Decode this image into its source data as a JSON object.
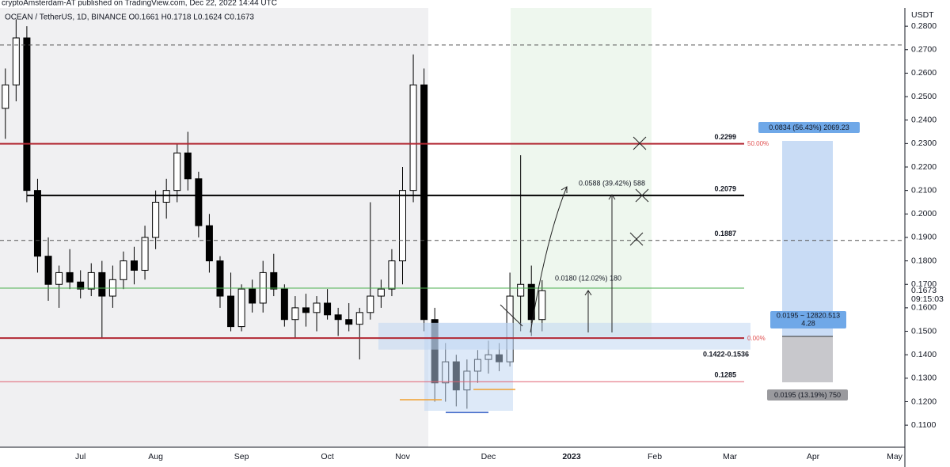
{
  "chart_data": {
    "type": "candlestick",
    "header": "cryptoAmsterdam-AT published on TradingView.com, Dec 22, 2022 14:44 UTC",
    "symbol": "OCEAN / TetherUS, 1D, BINANCE O0.1661 H0.1718 L0.1624 C0.1673",
    "currency": "USDT",
    "countdown": "09:15:03",
    "categories": [
      null,
      null,
      null,
      null,
      null,
      null,
      null,
      "Jul",
      null,
      null,
      null,
      null,
      null,
      null,
      "Aug",
      null,
      null,
      null,
      null,
      null,
      null,
      null,
      "Sep",
      null,
      null,
      null,
      null,
      null,
      null,
      null,
      "Oct",
      null,
      null,
      null,
      null,
      null,
      null,
      "Nov",
      null,
      null,
      null,
      null,
      null,
      null,
      null,
      "Dec",
      null,
      null,
      null,
      null,
      null
    ],
    "future_months": [
      "2023",
      "Feb",
      "Mar",
      "Apr",
      "May"
    ],
    "open": [
      0.245,
      0.255,
      0.275,
      0.21,
      0.182,
      0.17,
      0.175,
      0.171,
      0.168,
      0.175,
      0.165,
      0.172,
      0.18,
      0.176,
      0.19,
      0.205,
      0.21,
      0.226,
      0.215,
      0.195,
      0.18,
      0.165,
      0.152,
      0.168,
      0.162,
      0.175,
      0.168,
      0.155,
      0.16,
      0.158,
      0.162,
      0.157,
      0.155,
      0.153,
      0.158,
      0.165,
      0.168,
      0.18,
      0.21,
      0.255,
      0.155,
      0.128,
      0.137,
      0.125,
      0.133,
      0.138,
      0.14,
      0.137,
      0.165,
      0.17,
      0.155
    ],
    "high": [
      0.262,
      0.283,
      0.28,
      0.215,
      0.19,
      0.178,
      0.185,
      0.176,
      0.179,
      0.18,
      0.178,
      0.184,
      0.186,
      0.195,
      0.21,
      0.215,
      0.23,
      0.235,
      0.218,
      0.2,
      0.182,
      0.175,
      0.17,
      0.172,
      0.18,
      0.183,
      0.17,
      0.165,
      0.166,
      0.165,
      0.168,
      0.16,
      0.162,
      0.16,
      0.205,
      0.172,
      0.185,
      0.22,
      0.268,
      0.262,
      0.16,
      0.145,
      0.14,
      0.138,
      0.142,
      0.146,
      0.145,
      0.175,
      0.225,
      0.178,
      0.1718
    ],
    "low": [
      0.232,
      0.248,
      0.205,
      0.175,
      0.163,
      0.16,
      0.168,
      0.164,
      0.165,
      0.147,
      0.16,
      0.168,
      0.17,
      0.172,
      0.185,
      0.198,
      0.205,
      0.21,
      0.19,
      0.175,
      0.16,
      0.15,
      0.15,
      0.158,
      0.158,
      0.165,
      0.152,
      0.147,
      0.152,
      0.15,
      0.155,
      0.148,
      0.15,
      0.138,
      0.155,
      0.16,
      0.165,
      0.17,
      0.205,
      0.15,
      0.12,
      0.12,
      0.118,
      0.117,
      0.128,
      0.132,
      0.133,
      0.135,
      0.15,
      0.148,
      0.15
    ],
    "close": [
      0.255,
      0.275,
      0.21,
      0.182,
      0.17,
      0.175,
      0.171,
      0.168,
      0.175,
      0.165,
      0.172,
      0.18,
      0.176,
      0.19,
      0.205,
      0.21,
      0.226,
      0.215,
      0.195,
      0.18,
      0.165,
      0.152,
      0.168,
      0.162,
      0.175,
      0.168,
      0.155,
      0.16,
      0.158,
      0.162,
      0.157,
      0.155,
      0.153,
      0.158,
      0.165,
      0.168,
      0.18,
      0.21,
      0.255,
      0.155,
      0.128,
      0.137,
      0.125,
      0.133,
      0.138,
      0.14,
      0.137,
      0.165,
      0.17,
      0.155,
      0.1673
    ],
    "ylim": [
      0.1006,
      0.2878
    ],
    "yticks": [
      {
        "value": 0.11,
        "label": "0.1100"
      },
      {
        "value": 0.12,
        "label": "0.1200"
      },
      {
        "value": 0.13,
        "label": "0.1300"
      },
      {
        "value": 0.14,
        "label": "0.1400"
      },
      {
        "value": 0.15,
        "label": "0.1500"
      },
      {
        "value": 0.16,
        "label": "0.1600"
      },
      {
        "value": 0.17,
        "label": "0.1700"
      },
      {
        "value": 0.18,
        "label": "0.1800"
      },
      {
        "value": 0.19,
        "label": "0.1900"
      },
      {
        "value": 0.2,
        "label": "0.2000"
      },
      {
        "value": 0.21,
        "label": "0.2100"
      },
      {
        "value": 0.22,
        "label": "0.2200"
      },
      {
        "value": 0.23,
        "label": "0.2300"
      },
      {
        "value": 0.24,
        "label": "0.2400"
      },
      {
        "value": 0.25,
        "label": "0.2500"
      },
      {
        "value": 0.26,
        "label": "0.2600"
      },
      {
        "value": 0.27,
        "label": "0.2700"
      },
      {
        "value": 0.28,
        "label": "0.2800"
      }
    ],
    "levels": [
      {
        "value": 0.2299,
        "color": "#b22833"
      },
      {
        "value": 0.2079,
        "color": "#000000"
      },
      {
        "value": 0.1887,
        "color": "#555555",
        "dashed": true
      },
      {
        "value": 0.1285,
        "color": "#e06070"
      },
      {
        "value": 0.272,
        "color": "#555555",
        "dashed": true
      },
      {
        "value": 0.1684,
        "color": "#4caf50"
      },
      {
        "value": 0.1471,
        "color": "#b22833"
      }
    ],
    "zone": {
      "low": 0.1422,
      "high": 0.1536,
      "label": "0.1422-0.1536"
    },
    "annotations": {
      "fib_top": "50.00%",
      "fib_bottom": "0.00%",
      "measure_long": "0.0588 (39.42%) 588",
      "measure_short": "0.0180 (12.02%) 180",
      "target": "0.0834 (56.43%) 2069.23",
      "ratio": "0.0195 ~ 12820.513",
      "ratio_value": "4.28",
      "stop": "0.0195 (13.19%) 750"
    },
    "up_color": "#ffffff",
    "down_color": "#000000"
  }
}
